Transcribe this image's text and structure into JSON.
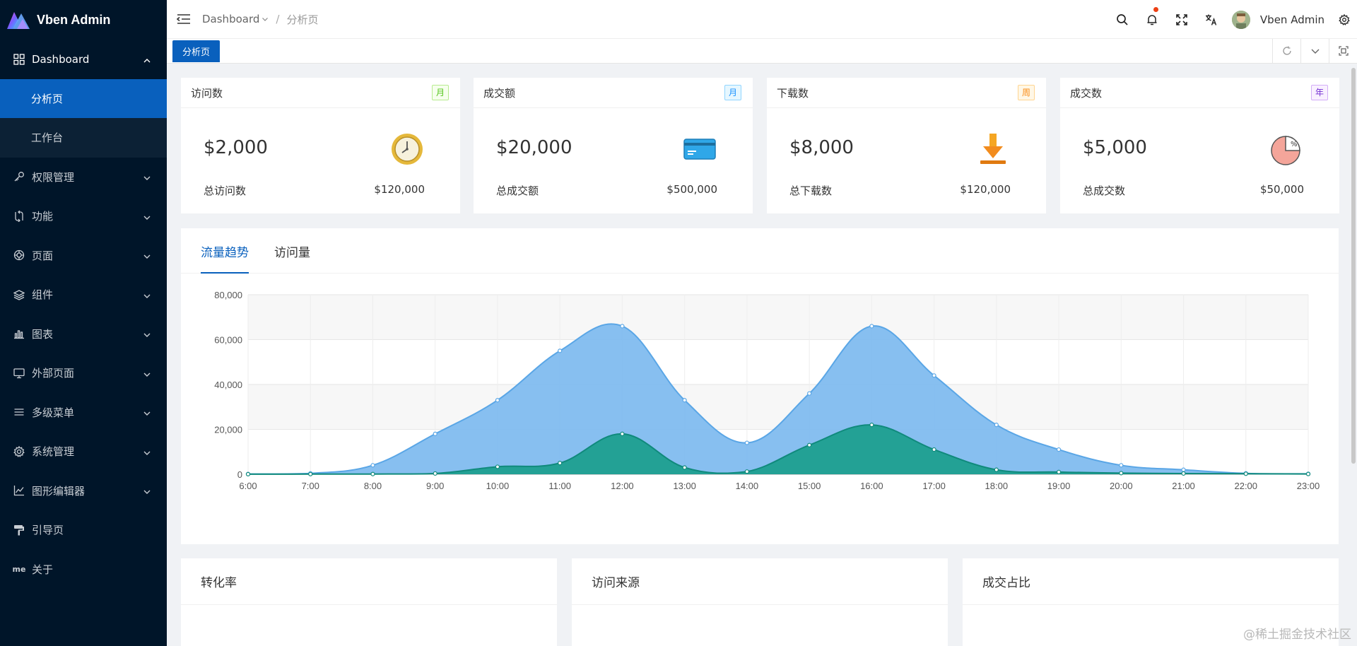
{
  "app": {
    "title": "Vben Admin"
  },
  "sidebar": {
    "items": [
      {
        "label": "Dashboard",
        "icon": "dashboard-icon",
        "open": true,
        "children": [
          {
            "label": "分析页",
            "active": true
          },
          {
            "label": "工作台"
          }
        ]
      },
      {
        "label": "权限管理",
        "icon": "key-icon"
      },
      {
        "label": "功能",
        "icon": "function-icon"
      },
      {
        "label": "页面",
        "icon": "page-icon"
      },
      {
        "label": "组件",
        "icon": "layers-icon"
      },
      {
        "label": "图表",
        "icon": "bar-chart-icon"
      },
      {
        "label": "外部页面",
        "icon": "monitor-icon"
      },
      {
        "label": "多级菜单",
        "icon": "menu-icon"
      },
      {
        "label": "系统管理",
        "icon": "gear-icon"
      },
      {
        "label": "图形编辑器",
        "icon": "line-chart-icon"
      },
      {
        "label": "引导页",
        "icon": "paint-roller-icon"
      },
      {
        "label": "关于",
        "icon": "me-icon"
      }
    ]
  },
  "header": {
    "breadcrumb": {
      "root": "Dashboard",
      "separator": "/",
      "current": "分析页"
    },
    "user_name": "Vben Admin"
  },
  "tabs": {
    "active": "分析页"
  },
  "stats": [
    {
      "title": "访问数",
      "badge": "月",
      "badge_color": "green",
      "value": "$2,000",
      "foot_label": "总访问数",
      "foot_value": "$120,000",
      "icon": "clock-icon"
    },
    {
      "title": "成交额",
      "badge": "月",
      "badge_color": "blue",
      "value": "$20,000",
      "foot_label": "总成交额",
      "foot_value": "$500,000",
      "icon": "credit-card-icon"
    },
    {
      "title": "下载数",
      "badge": "周",
      "badge_color": "orange",
      "value": "$8,000",
      "foot_label": "总下载数",
      "foot_value": "$120,000",
      "icon": "download-icon"
    },
    {
      "title": "成交数",
      "badge": "年",
      "badge_color": "purple",
      "value": "$5,000",
      "foot_label": "总成交数",
      "foot_value": "$50,000",
      "icon": "pie-percent-icon"
    }
  ],
  "chart_tabs": [
    {
      "label": "流量趋势",
      "active": true
    },
    {
      "label": "访问量"
    }
  ],
  "chart_data": {
    "type": "area",
    "categories": [
      "6:00",
      "7:00",
      "8:00",
      "9:00",
      "10:00",
      "11:00",
      "12:00",
      "13:00",
      "14:00",
      "15:00",
      "16:00",
      "17:00",
      "18:00",
      "19:00",
      "20:00",
      "21:00",
      "22:00",
      "23:00"
    ],
    "series": [
      {
        "color": "#7ab8ee",
        "values": [
          111,
          400,
          4000,
          18000,
          33000,
          55000,
          66000,
          33000,
          14000,
          36000,
          66000,
          44000,
          22000,
          11000,
          4000,
          2000,
          400,
          200
        ]
      },
      {
        "color": "#1d9f8f",
        "values": [
          33,
          66,
          88,
          333,
          3333,
          5000,
          18000,
          3000,
          1200,
          13000,
          22000,
          11000,
          2000,
          1000,
          500,
          333,
          222,
          111
        ]
      }
    ],
    "yticks": [
      "0",
      "20,000",
      "40,000",
      "60,000",
      "80,000"
    ],
    "ylim": [
      0,
      80000
    ],
    "grid": true
  },
  "panels": [
    {
      "title": "转化率"
    },
    {
      "title": "访问来源"
    },
    {
      "title": "成交占比"
    }
  ],
  "watermark": "@稀土掘金技术社区",
  "colors": {
    "primary": "#0960bd",
    "sidebar": "#001529"
  }
}
